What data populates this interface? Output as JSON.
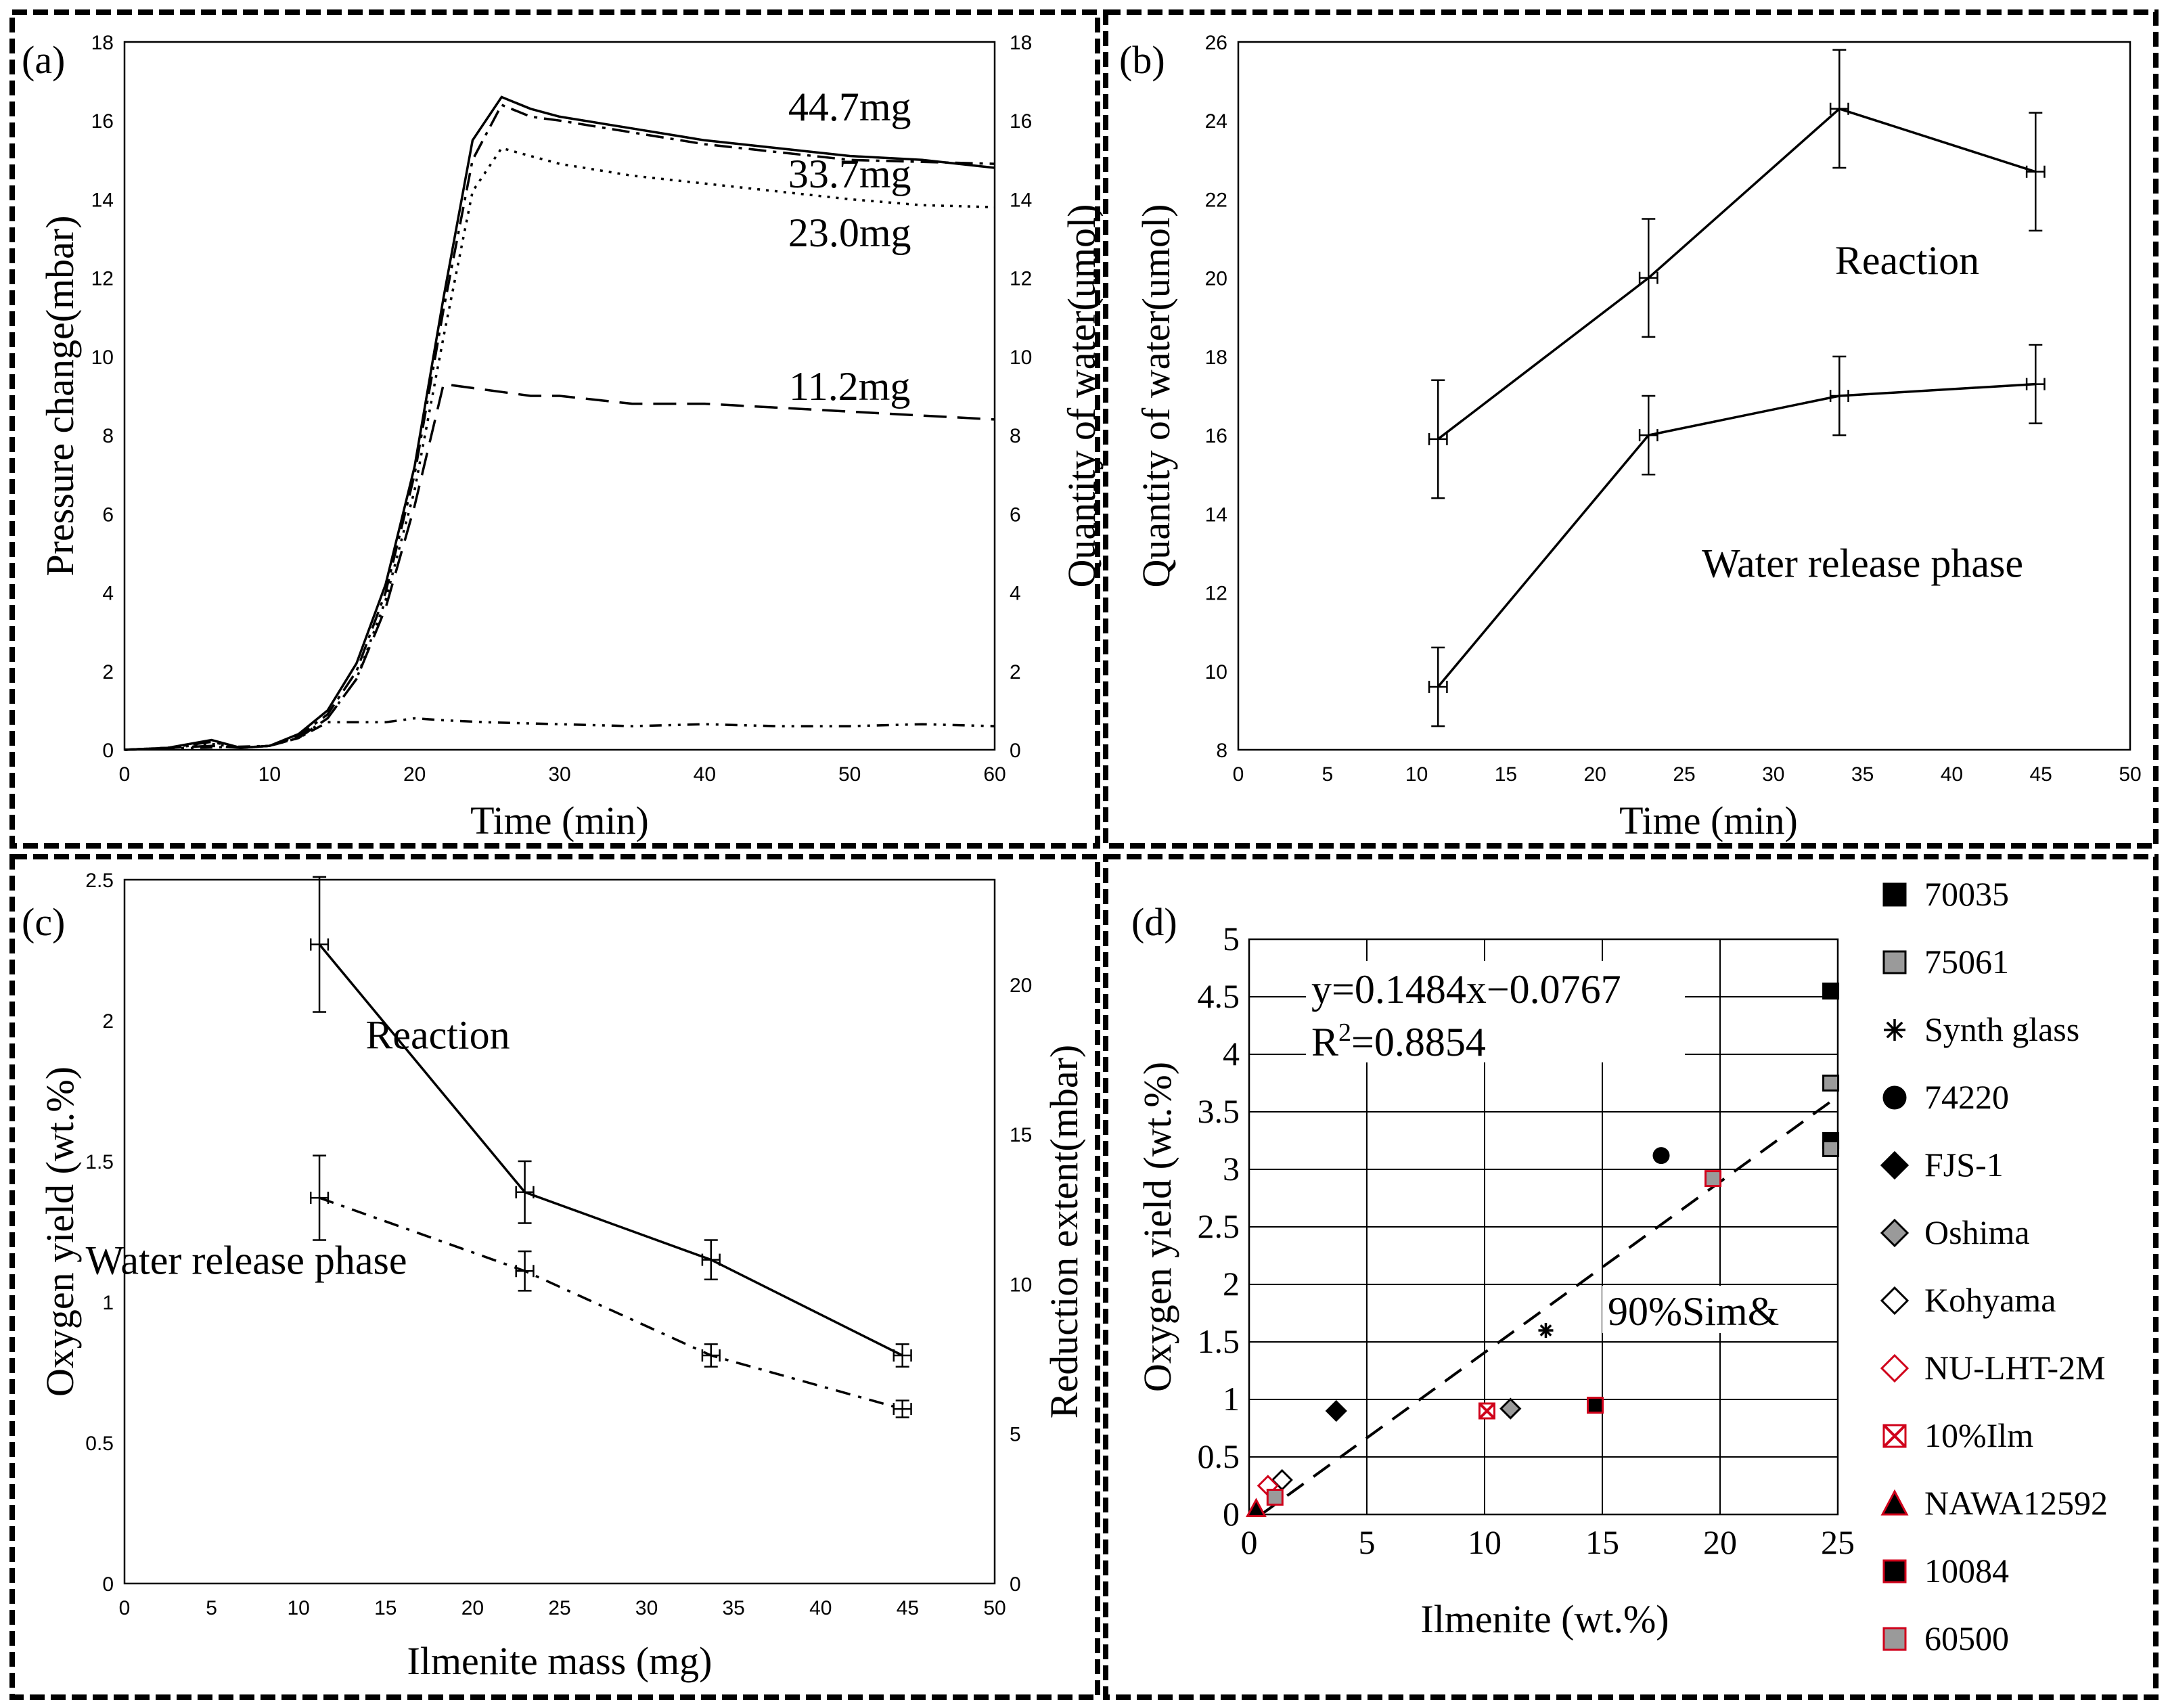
{
  "chart_data": [
    {
      "id": "a",
      "type": "line",
      "panel_label": "(a)",
      "xlabel": "Time (min)",
      "ylabel": "Pressure change(mbar)",
      "y2label": "Quantity of water(umol)",
      "xlim": [
        0,
        60
      ],
      "ylim": [
        0,
        18
      ],
      "y2lim": [
        0,
        18
      ],
      "xticks": [
        0,
        10,
        20,
        30,
        40,
        50,
        60
      ],
      "yticks": [
        0,
        2,
        4,
        6,
        8,
        10,
        12,
        14,
        16,
        18
      ],
      "y2ticks": [
        0,
        2,
        4,
        6,
        8,
        10,
        12,
        14,
        16,
        18
      ],
      "series": [
        {
          "name": "44.7mg",
          "dash": "solid",
          "x": [
            0,
            3,
            6,
            8,
            10,
            12,
            14,
            16,
            18,
            20,
            22,
            24,
            26,
            28,
            30,
            35,
            40,
            45,
            50,
            55,
            60
          ],
          "y": [
            0,
            0.05,
            0.25,
            0.05,
            0.1,
            0.4,
            1.0,
            2.2,
            4.2,
            7.2,
            11.5,
            15.5,
            16.6,
            16.3,
            16.1,
            15.8,
            15.5,
            15.3,
            15.1,
            15.0,
            14.8
          ]
        },
        {
          "name": "33.7mg",
          "dash": "dashdot",
          "x": [
            0,
            3,
            6,
            8,
            10,
            12,
            14,
            16,
            18,
            20,
            22,
            24,
            26,
            28,
            30,
            35,
            40,
            45,
            50,
            55,
            60
          ],
          "y": [
            0,
            0.05,
            0.2,
            0.05,
            0.1,
            0.35,
            0.9,
            2.0,
            4.0,
            7.0,
            11.2,
            15.0,
            16.4,
            16.1,
            16.0,
            15.7,
            15.4,
            15.2,
            15.0,
            14.95,
            14.9
          ]
        },
        {
          "name": "23.0mg",
          "dash": "dotted",
          "x": [
            0,
            3,
            6,
            8,
            10,
            12,
            14,
            16,
            18,
            20,
            22,
            24,
            26,
            28,
            30,
            35,
            40,
            45,
            50,
            55,
            60
          ],
          "y": [
            0,
            0.05,
            0.15,
            0.05,
            0.1,
            0.3,
            0.8,
            1.8,
            3.8,
            6.6,
            10.5,
            14.2,
            15.3,
            15.1,
            14.9,
            14.6,
            14.4,
            14.2,
            14.0,
            13.85,
            13.8
          ]
        },
        {
          "name": "11.2mg",
          "dash": "dashed",
          "x": [
            0,
            3,
            6,
            8,
            10,
            12,
            14,
            16,
            18,
            20,
            22,
            24,
            26,
            28,
            30,
            35,
            40,
            45,
            50,
            55,
            60
          ],
          "y": [
            0,
            0.05,
            0.1,
            0.05,
            0.1,
            0.3,
            0.8,
            1.8,
            3.6,
            6.2,
            9.3,
            9.2,
            9.1,
            9.0,
            9.0,
            8.8,
            8.8,
            8.7,
            8.6,
            8.5,
            8.4
          ]
        },
        {
          "name": "",
          "dash": "dashdotdot",
          "x": [
            0,
            5,
            10,
            12,
            14,
            16,
            18,
            20,
            22,
            25,
            30,
            35,
            40,
            45,
            50,
            55,
            60
          ],
          "y": [
            0,
            0.05,
            0.1,
            0.3,
            0.7,
            0.7,
            0.7,
            0.8,
            0.75,
            0.7,
            0.65,
            0.6,
            0.65,
            0.6,
            0.6,
            0.65,
            0.6
          ]
        }
      ],
      "annotations": [
        {
          "text": "44.7mg",
          "x": 50,
          "y": 16.0
        },
        {
          "text": "33.7mg",
          "x": 50,
          "y": 14.3
        },
        {
          "text": "23.0mg",
          "x": 50,
          "y": 12.8
        },
        {
          "text": "11.2mg",
          "x": 50,
          "y": 8.9
        }
      ]
    },
    {
      "id": "b",
      "type": "line",
      "panel_label": "(b)",
      "xlabel": "Time (min)",
      "ylabel": "Quantity of water(umol)",
      "xlim": [
        0,
        50
      ],
      "ylim": [
        8,
        26
      ],
      "xticks": [
        0,
        5,
        10,
        15,
        20,
        25,
        30,
        35,
        40,
        45,
        50
      ],
      "yticks": [
        8,
        10,
        12,
        14,
        16,
        18,
        20,
        22,
        24,
        26
      ],
      "series": [
        {
          "name": "Reaction",
          "x": [
            11.2,
            23.0,
            33.7,
            44.7
          ],
          "y": [
            15.9,
            20.0,
            24.3,
            22.7
          ],
          "yerr": [
            1.5,
            1.5,
            1.5,
            1.5
          ],
          "xerr": [
            0.5,
            0.5,
            0.5,
            0.5
          ]
        },
        {
          "name": "Water release phase",
          "x": [
            11.2,
            23.0,
            33.7,
            44.7
          ],
          "y": [
            9.6,
            16.0,
            17.0,
            17.3
          ],
          "yerr": [
            1.0,
            1.0,
            1.0,
            1.0
          ],
          "xerr": [
            0.5,
            0.5,
            0.5,
            0.5
          ]
        }
      ],
      "annotations": [
        {
          "text": "Reaction",
          "x": 37.5,
          "y": 20.1
        },
        {
          "text": "Water release phase",
          "x": 35.0,
          "y": 12.4
        }
      ]
    },
    {
      "id": "c",
      "type": "line",
      "panel_label": "(c)",
      "xlabel": "Ilmenite mass (mg)",
      "ylabel": "Oxygen yield (wt.%)",
      "y2label": "Reduction extent(mbar)",
      "xlim": [
        0,
        50
      ],
      "ylim": [
        0,
        2.5
      ],
      "y2lim": [
        0,
        23.5
      ],
      "xticks": [
        0,
        5,
        10,
        15,
        20,
        25,
        30,
        35,
        40,
        45,
        50
      ],
      "yticks": [
        0,
        0.5,
        1,
        1.5,
        2,
        2.5
      ],
      "y2ticks": [
        0,
        5,
        10,
        15,
        20
      ],
      "series": [
        {
          "name": "Reaction",
          "x": [
            11.2,
            23.0,
            33.7,
            44.7
          ],
          "y": [
            2.27,
            1.39,
            1.15,
            0.81
          ],
          "yerr": [
            0.24,
            0.11,
            0.07,
            0.04
          ],
          "xerr": [
            0.5,
            0.5,
            0.5,
            0.5
          ]
        },
        {
          "name": "Water release phase",
          "x": [
            11.2,
            23.0,
            33.7,
            44.7
          ],
          "y": [
            1.37,
            1.11,
            0.81,
            0.62
          ],
          "yerr": [
            0.15,
            0.07,
            0.04,
            0.03
          ],
          "xerr": [
            0.5,
            0.5,
            0.5,
            0.5
          ]
        }
      ],
      "annotations": [
        {
          "text": "Reaction",
          "x": 18.0,
          "y": 1.9
        },
        {
          "text": "Water release phase",
          "x": 7.0,
          "y": 1.1
        }
      ]
    },
    {
      "id": "d",
      "type": "scatter",
      "panel_label": "(d)",
      "xlabel": "Ilmenite (wt.%)",
      "ylabel": "Oxygen yield (wt.%)",
      "xlim": [
        0,
        25
      ],
      "ylim": [
        0,
        5
      ],
      "xticks": [
        0,
        5,
        10,
        15,
        20,
        25
      ],
      "yticks": [
        0,
        0.5,
        1,
        1.5,
        2,
        2.5,
        3,
        3.5,
        4,
        4.5,
        5
      ],
      "fit": {
        "slope": 0.1484,
        "intercept": -0.0767,
        "x": [
          0.5,
          24.8
        ]
      },
      "equation": "y=0.1484x−0.0767",
      "r2_prefix": "R",
      "r2_sup": "2",
      "r2_value": "=0.8854",
      "note": "90%Sim&",
      "series": [
        {
          "name": "70035",
          "marker": "square",
          "fill": "#000000",
          "edge": "#000000",
          "points": [
            [
              24.7,
              4.55
            ],
            [
              24.7,
              3.25
            ]
          ]
        },
        {
          "name": "75061",
          "marker": "square",
          "fill": "#9a9a9a",
          "edge": "#000000",
          "points": [
            [
              24.7,
              3.75
            ],
            [
              24.7,
              3.18
            ]
          ]
        },
        {
          "name": "Synth glass",
          "marker": "asterisk",
          "fill": "#000000",
          "edge": "#000000",
          "points": [
            [
              12.6,
              1.6
            ]
          ]
        },
        {
          "name": "74220",
          "marker": "circle",
          "fill": "#000000",
          "edge": "#000000",
          "points": [
            [
              17.5,
              3.12
            ]
          ]
        },
        {
          "name": "FJS-1",
          "marker": "diamond",
          "fill": "#000000",
          "edge": "#000000",
          "points": [
            [
              3.7,
              0.9
            ]
          ]
        },
        {
          "name": "Oshima",
          "marker": "diamond",
          "fill": "#9a9a9a",
          "edge": "#000000",
          "points": [
            [
              11.1,
              0.92
            ]
          ]
        },
        {
          "name": "Kohyama",
          "marker": "diamond",
          "fill": "#ffffff",
          "edge": "#000000",
          "points": [
            [
              1.4,
              0.3
            ]
          ]
        },
        {
          "name": "NU-LHT-2M",
          "marker": "diamond",
          "fill": "#ffffff",
          "edge": "#d0021b",
          "points": [
            [
              0.8,
              0.25
            ]
          ]
        },
        {
          "name": "10%Ilm",
          "marker": "xsquare",
          "fill": "#ffffff",
          "edge": "#d0021b",
          "points": [
            [
              10.1,
              0.9
            ]
          ]
        },
        {
          "name": "NAWA12592",
          "marker": "triangle",
          "fill": "#000000",
          "edge": "#d0021b",
          "points": [
            [
              0.3,
              0.05
            ]
          ]
        },
        {
          "name": "10084",
          "marker": "square",
          "fill": "#000000",
          "edge": "#d0021b",
          "points": [
            [
              14.7,
              0.95
            ]
          ]
        },
        {
          "name": "60500",
          "marker": "square",
          "fill": "#9a9a9a",
          "edge": "#d0021b",
          "points": [
            [
              19.7,
              2.92
            ],
            [
              1.1,
              0.15
            ]
          ]
        }
      ]
    }
  ]
}
